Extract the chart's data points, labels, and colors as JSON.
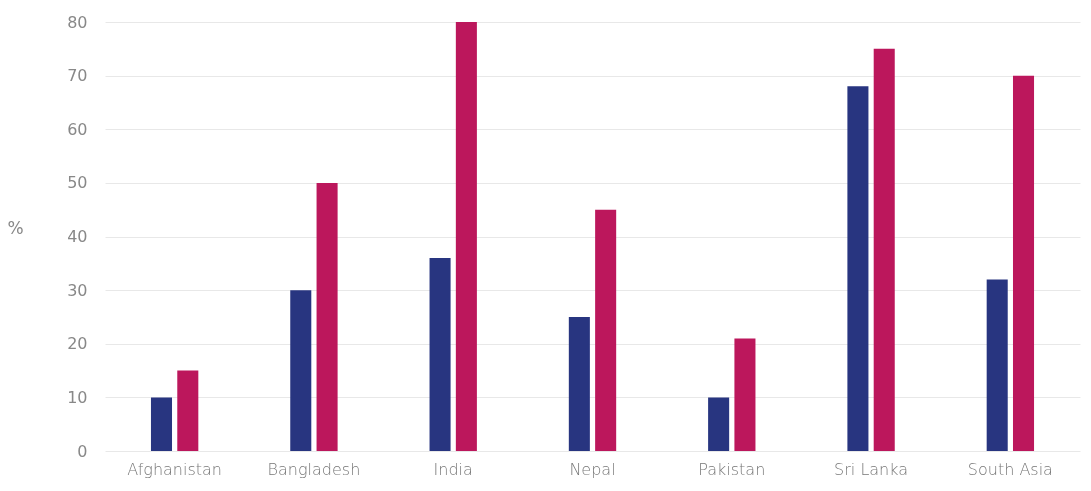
{
  "chart_data": {
    "type": "bar",
    "ylabel": "%",
    "categories": [
      "Afghanistan",
      "Bangladesh",
      "India",
      "Nepal",
      "Pakistan",
      "Sri Lanka",
      "South Asia"
    ],
    "series": [
      {
        "color": "#283580",
        "values": [
          10,
          30,
          36,
          25,
          10,
          68,
          32
        ]
      },
      {
        "color": "#bc175c",
        "values": [
          15,
          50,
          80,
          45,
          21,
          75,
          70
        ]
      }
    ],
    "ylim": [
      0,
      80
    ],
    "yticks": [
      0,
      10,
      20,
      30,
      40,
      50,
      60,
      70,
      80
    ],
    "grid": "y"
  }
}
